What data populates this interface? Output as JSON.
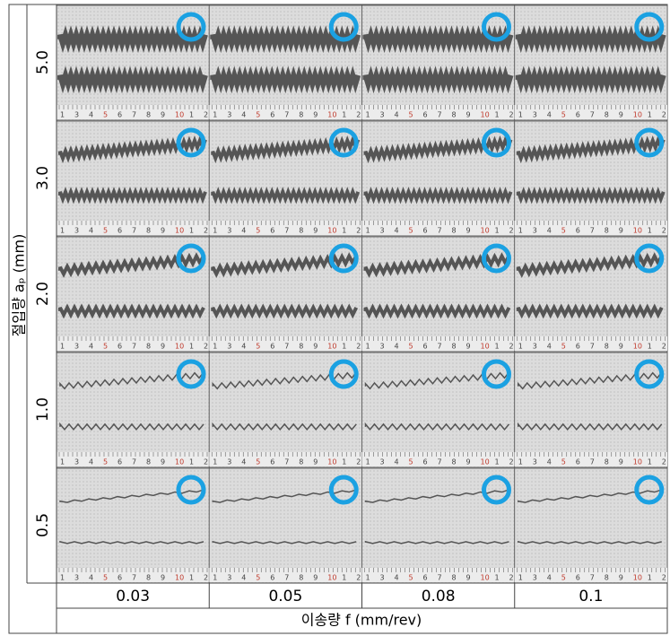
{
  "y_axis": {
    "label": "절입량 aₚ (mm)",
    "values": [
      "5.0",
      "3.0",
      "2.0",
      "1.0",
      "0.5"
    ]
  },
  "x_axis": {
    "label": "이송량 f (mm/rev)",
    "values": [
      "0.03",
      "0.05",
      "0.08",
      "0.1"
    ]
  },
  "ruler_labels": [
    "1",
    "3",
    "4",
    "5",
    "6",
    "7",
    "8",
    "9",
    "10",
    "1",
    "2"
  ]
}
